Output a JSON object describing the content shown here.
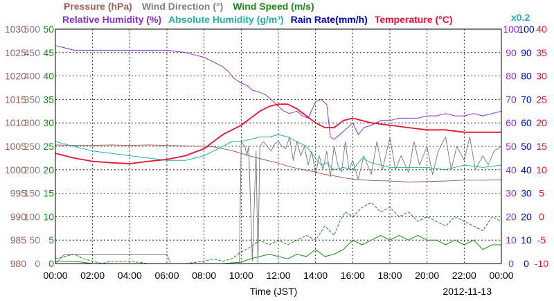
{
  "chart_data": {
    "type": "line",
    "title_rows": [
      [
        {
          "text": "Pressure (hPa)",
          "color": "#a0605a"
        },
        {
          "text": "Wind Direction (°)",
          "color": "#808080"
        },
        {
          "text": "Wind Speed (m/s)",
          "color": "#1a8a1a"
        }
      ],
      [
        {
          "text": "Relative Humidity (%)",
          "color": "#8a2be2"
        },
        {
          "text": "Absolute Humidity (g/m³)",
          "color": "#20b2aa"
        },
        {
          "text": "Rain Rate(mm/h)",
          "color": "#0000cc"
        },
        {
          "text": "Temperature (°C)",
          "color": "#ee1133"
        }
      ]
    ],
    "rain_scale_note": "x0.2",
    "xlabel": "Time (JST)",
    "date": "2012-11-13",
    "x_ticks": [
      "00:00",
      "02:00",
      "04:00",
      "06:00",
      "08:00",
      "10:00",
      "12:00",
      "14:00",
      "16:00",
      "18:00",
      "20:00",
      "22:00",
      "00:00"
    ],
    "xlim": [
      0,
      24
    ],
    "left_axes": [
      {
        "name": "pressure",
        "color": "#a0605a",
        "ticks": [
          "1030",
          "1025",
          "1020",
          "1015",
          "1010",
          "1005",
          "1000",
          "995",
          "990",
          "985",
          "980"
        ],
        "range": [
          980,
          1030
        ]
      },
      {
        "name": "wind_direction",
        "color": "#808080",
        "ticks": [
          "500",
          "450",
          "400",
          "350",
          "300",
          "250",
          "200",
          "150",
          "100",
          "50",
          "0"
        ],
        "range": [
          0,
          500
        ]
      },
      {
        "name": "wind_speed",
        "color": "#1a8a1a",
        "ticks": [
          "50",
          "45",
          "40",
          "35",
          "30",
          "25",
          "20",
          "15",
          "10",
          "5",
          "0"
        ],
        "range": [
          0,
          50
        ]
      }
    ],
    "right_axes": [
      {
        "name": "humidity",
        "color": "#8a2be2",
        "ticks": [
          "100",
          "90",
          "80",
          "70",
          "60",
          "50",
          "40",
          "30",
          "20",
          "10",
          "0"
        ],
        "range": [
          0,
          100
        ]
      },
      {
        "name": "rain_rate",
        "color": "#0000cc",
        "ticks": [
          "100",
          "90",
          "80",
          "70",
          "60",
          "50",
          "40",
          "30",
          "20",
          "10",
          "0"
        ],
        "range": [
          0,
          100
        ]
      },
      {
        "name": "temperature",
        "color": "#ee1133",
        "ticks": [
          "40",
          "35",
          "30",
          "25",
          "20",
          "15",
          "10",
          "5",
          "0",
          "-5",
          "-10"
        ],
        "range": [
          -10,
          40
        ]
      }
    ],
    "grid": true,
    "series": [
      {
        "name": "Relative Humidity (%)",
        "axis": "humidity",
        "color": "#8a2be2",
        "x": [
          0,
          0.5,
          1,
          2,
          3,
          4,
          5,
          6,
          7,
          7.5,
          8,
          8.5,
          9,
          9.3,
          9.6,
          10,
          10.3,
          10.6,
          11,
          11.3,
          11.6,
          12,
          12.3,
          12.6,
          13,
          13.3,
          13.6,
          14,
          14.3,
          14.6,
          14.8,
          15,
          15.3,
          15.6,
          16,
          16.3,
          16.6,
          17,
          17.5,
          18,
          18.5,
          19,
          19.5,
          20,
          20.5,
          21,
          21.5,
          22,
          22.5,
          23,
          23.5,
          24
        ],
        "y": [
          93,
          92,
          91,
          91,
          91,
          91,
          91,
          91,
          90,
          89,
          88,
          86,
          84,
          82,
          79,
          77,
          76,
          74,
          73,
          72,
          70,
          67,
          65,
          64,
          65,
          63,
          62,
          69,
          70,
          68,
          54,
          53,
          55,
          57,
          60,
          55,
          58,
          59,
          61,
          61,
          62,
          62,
          62,
          63,
          63,
          64,
          63,
          63,
          64,
          63,
          64,
          65
        ]
      },
      {
        "name": "Absolute Humidity (g/m³)",
        "axis": "humidity",
        "color": "#20b2aa",
        "x": [
          0,
          1,
          2,
          3,
          4,
          5,
          6,
          7,
          7.5,
          8,
          8.5,
          9,
          9.5,
          10,
          10.5,
          11,
          11.5,
          12,
          12.5,
          13,
          13.5,
          14,
          14.3,
          14.6,
          15,
          15.5,
          16,
          16.5,
          17,
          17.5,
          18,
          19,
          20,
          21,
          22,
          23,
          24
        ],
        "y": [
          52,
          50,
          48,
          47,
          46,
          45,
          44,
          44,
          45,
          46,
          48,
          50,
          52,
          52,
          53,
          54,
          54,
          55,
          54,
          52,
          50,
          45,
          42,
          43,
          40,
          41,
          40,
          45,
          43,
          42,
          41,
          41,
          41,
          40,
          42,
          41,
          42
        ]
      },
      {
        "name": "Temperature (°C)",
        "axis": "temperature",
        "color": "#ee1133",
        "x": [
          0,
          1,
          2,
          3,
          4,
          5,
          6,
          7,
          8,
          8.5,
          9,
          9.5,
          10,
          10.5,
          11,
          11.5,
          12,
          12.5,
          13,
          13.5,
          14,
          14.5,
          15,
          15.5,
          16,
          17,
          18,
          19,
          20,
          21,
          22,
          23,
          24
        ],
        "y": [
          13.5,
          12.5,
          11.8,
          11.5,
          11.3,
          11.8,
          12.2,
          13,
          14.5,
          16,
          17.5,
          18.5,
          19.5,
          21,
          22.5,
          23.5,
          24,
          24,
          23,
          21.5,
          20,
          19,
          19,
          20.5,
          21,
          20,
          19.5,
          19,
          18.5,
          18.5,
          18,
          18,
          18
        ]
      },
      {
        "name": "Pressure (hPa)",
        "axis": "pressure",
        "color": "#a0605a",
        "x": [
          0,
          1,
          2,
          3,
          4,
          5,
          6,
          7,
          8,
          8.5,
          9,
          9.5,
          10,
          10.5,
          11,
          11.5,
          12,
          12.5,
          13,
          13.5,
          14,
          14.5,
          15,
          15.5,
          16,
          17,
          18,
          19,
          20,
          21,
          22,
          23,
          24
        ],
        "y": [
          1005.3,
          1005.2,
          1005.2,
          1005.3,
          1005.2,
          1005.3,
          1005.2,
          1005.1,
          1005,
          1004.9,
          1004.5,
          1004.1,
          1003.5,
          1002.9,
          1002.4,
          1001.9,
          1001.4,
          1000.8,
          1000.3,
          999.9,
          999.5,
          999,
          998.7,
          998.3,
          998,
          997.7,
          997.6,
          997.4,
          997.5,
          997.6,
          997.8,
          997.8,
          997.9
        ]
      },
      {
        "name": "Wind Direction (°)",
        "axis": "wind_direction",
        "color": "#808080",
        "x": [
          0,
          0.5,
          1,
          2,
          3,
          4,
          5,
          6,
          6.2,
          7,
          8,
          9,
          9.9,
          10,
          10.2,
          10.3,
          10.4,
          10.6,
          10.8,
          10.9,
          11,
          11.2,
          11.4,
          11.6,
          11.8,
          12,
          12.2,
          12.4,
          12.6,
          12.8,
          13,
          13.2,
          13.4,
          13.6,
          13.8,
          14,
          14.2,
          14.4,
          14.6,
          14.8,
          15,
          15.2,
          15.4,
          15.6,
          15.8,
          16,
          16.3,
          16.6,
          17,
          17.3,
          17.6,
          18,
          18.3,
          18.6,
          19,
          19.3,
          19.6,
          20,
          20.3,
          20.6,
          21,
          21.3,
          21.6,
          22,
          22.3,
          22.6,
          23,
          23.3,
          23.6,
          24
        ],
        "y": [
          0,
          20,
          20,
          20,
          20,
          20,
          20,
          20,
          0,
          0,
          0,
          0,
          0,
          260,
          250,
          230,
          250,
          5,
          240,
          0,
          250,
          260,
          250,
          240,
          255,
          260,
          250,
          245,
          270,
          220,
          260,
          230,
          250,
          210,
          240,
          190,
          230,
          200,
          240,
          185,
          250,
          210,
          195,
          260,
          200,
          220,
          180,
          230,
          190,
          260,
          200,
          270,
          200,
          230,
          195,
          260,
          210,
          250,
          190,
          240,
          270,
          200,
          250,
          220,
          270,
          200,
          230,
          210,
          240,
          250
        ]
      },
      {
        "name": "Wind Speed (m/s)",
        "axis": "wind_speed",
        "color": "#1a8a1a",
        "style": "solid",
        "x": [
          0,
          1,
          2,
          3,
          4,
          5,
          6,
          7,
          8,
          9,
          10,
          10.5,
          11,
          11.5,
          12,
          12.5,
          13,
          13.5,
          14,
          14.5,
          15,
          15.5,
          16,
          16.5,
          17,
          17.5,
          18,
          18.5,
          19,
          19.5,
          20,
          20.5,
          21,
          21.5,
          22,
          22.5,
          23,
          23.5,
          24
        ],
        "y": [
          0.5,
          0.5,
          0,
          0,
          0,
          0,
          0,
          0,
          0,
          0,
          0.3,
          1,
          1.5,
          2,
          1.5,
          1,
          2,
          1.5,
          3,
          1.5,
          2,
          3,
          5,
          4,
          5,
          6,
          5,
          6,
          5,
          6,
          5,
          5,
          4,
          5,
          4,
          5,
          3,
          4,
          4
        ]
      },
      {
        "name": "Wind Speed (m/s) gust",
        "axis": "wind_speed",
        "color": "#1a8a1a",
        "style": "dashed",
        "x": [
          0,
          0.5,
          1,
          1.5,
          2,
          2.5,
          3,
          4,
          5,
          6,
          7,
          8,
          8.5,
          9,
          9.5,
          10,
          10.5,
          11,
          11.5,
          12,
          12.5,
          13,
          13.5,
          14,
          14.5,
          15,
          15.3,
          15.6,
          16,
          16.5,
          17,
          17.5,
          18,
          18.5,
          19,
          19.5,
          20,
          20.5,
          21,
          21.5,
          22,
          22.5,
          23,
          23.5,
          24
        ],
        "y": [
          1,
          1.5,
          2,
          1,
          0.5,
          0,
          0.5,
          0.5,
          0,
          0,
          0,
          0.5,
          1,
          0.5,
          1,
          2.5,
          3.5,
          5,
          4,
          5,
          4,
          5,
          6,
          5,
          8,
          6,
          9,
          11,
          10,
          12,
          13,
          11,
          12,
          10,
          11,
          9,
          10,
          9,
          8,
          10,
          9,
          8,
          7,
          10,
          9
        ]
      },
      {
        "name": "Rain Rate(mm/h)",
        "axis": "rain_rate",
        "color": "#0000cc",
        "x": [
          0,
          24
        ],
        "y": [
          0,
          0
        ]
      }
    ]
  }
}
